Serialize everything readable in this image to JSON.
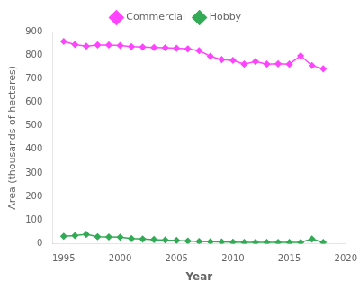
{
  "chart_data": {
    "type": "line",
    "x": [
      1995,
      1996,
      1997,
      1998,
      1999,
      2000,
      2001,
      2002,
      2003,
      2004,
      2005,
      2006,
      2007,
      2008,
      2009,
      2010,
      2011,
      2012,
      2013,
      2014,
      2015,
      2016,
      2017,
      2018
    ],
    "series": [
      {
        "name": "Commercial",
        "color": "#ff44ff",
        "marker": "diamond",
        "values": [
          858,
          845,
          838,
          843,
          843,
          841,
          836,
          834,
          832,
          831,
          829,
          826,
          819,
          795,
          781,
          778,
          762,
          773,
          762,
          763,
          762,
          797,
          756,
          742
        ]
      },
      {
        "name": "Hobby",
        "color": "#33aa55",
        "marker": "diamond",
        "values": [
          32,
          35,
          40,
          30,
          29,
          28,
          22,
          20,
          18,
          16,
          14,
          12,
          10,
          9,
          8,
          7,
          6,
          6,
          6,
          6,
          6,
          6,
          20,
          6
        ]
      }
    ],
    "xlabel": "Year",
    "ylabel": "Area (thousands of hectares)",
    "xlim": [
      1994,
      2020
    ],
    "xticks": [
      1995,
      2000,
      2005,
      2010,
      2015,
      2020
    ],
    "ylim": [
      0,
      900
    ],
    "yticks": [
      0,
      100,
      200,
      300,
      400,
      500,
      600,
      700,
      800,
      900
    ],
    "grid": false,
    "legend": "top"
  }
}
